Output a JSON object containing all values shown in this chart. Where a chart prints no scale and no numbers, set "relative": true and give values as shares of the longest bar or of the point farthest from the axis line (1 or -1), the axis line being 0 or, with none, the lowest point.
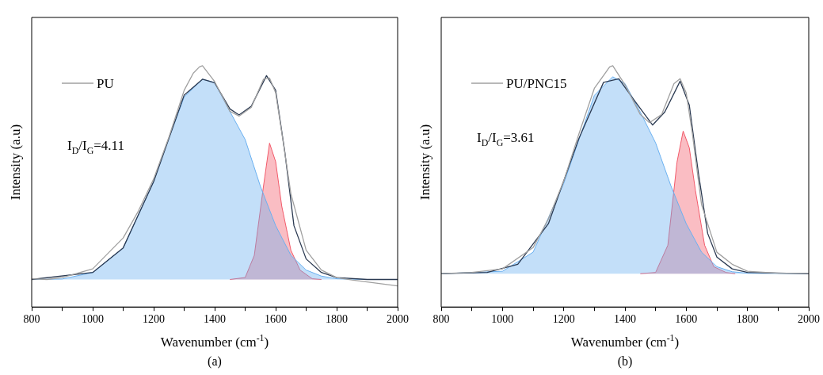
{
  "chart_data": [
    {
      "type": "line",
      "relative": true,
      "xlabel": "Wavenumber (cm$^{-1}$)",
      "ylabel": "Intensity (a.u)",
      "legend": "top left",
      "marker": "none",
      "xlim": [
        800,
        2000
      ],
      "xticks": [
        800,
        {
          "value": 900,
          "label": null
        },
        1000,
        {
          "value": 1100,
          "label": null
        },
        1200,
        {
          "value": 1300,
          "label": null
        },
        1400,
        {
          "value": 1500,
          "label": null
        },
        1600,
        {
          "value": 1700,
          "label": null
        },
        1800,
        {
          "value": 1900,
          "label": null
        },
        2000
      ],
      "annotations": [
        "I$_{D}$/I$_{G}$=4.11",
        "(a)"
      ],
      "series": [
        {
          "type": "line",
          "name": "PU",
          "color": "#a0a0a0",
          "x": [
            800,
            850,
            900,
            1000,
            1100,
            1150,
            1200,
            1250,
            1300,
            1330,
            1350,
            1360,
            1400,
            1450,
            1480,
            1520,
            1560,
            1580,
            1600,
            1620,
            1650,
            1700,
            1750,
            1800,
            1850,
            1900,
            2000
          ],
          "values": [
            0.117,
            0.114,
            0.122,
            0.158,
            0.286,
            0.398,
            0.531,
            0.704,
            0.898,
            0.969,
            0.995,
            1,
            0.934,
            0.811,
            0.791,
            0.827,
            0.944,
            0.949,
            0.888,
            0.724,
            0.469,
            0.235,
            0.153,
            0.122,
            0.112,
            0.104,
            0.087
          ]
        },
        {
          "type": "line",
          "color": "#2b3a52",
          "x": [
            800,
            1000,
            1100,
            1200,
            1300,
            1360,
            1400,
            1450,
            1480,
            1520,
            1570,
            1600,
            1630,
            1660,
            1700,
            1750,
            1800,
            1900,
            2000
          ],
          "values": [
            0.114,
            0.143,
            0.245,
            0.52,
            0.878,
            0.944,
            0.929,
            0.821,
            0.796,
            0.832,
            0.959,
            0.898,
            0.643,
            0.337,
            0.199,
            0.143,
            0.122,
            0.114,
            0.114
          ]
        },
        {
          "type": "area",
          "color": "#6ab0f0",
          "x": [
            800,
            900,
            1000,
            1100,
            1200,
            1250,
            1300,
            1360,
            1400,
            1450,
            1500,
            1550,
            1600,
            1650,
            1700,
            1750,
            1800,
            1900
          ],
          "values": [
            0.114,
            0.116,
            0.143,
            0.245,
            0.52,
            0.7,
            0.87,
            0.944,
            0.93,
            0.81,
            0.694,
            0.5,
            0.337,
            0.214,
            0.153,
            0.128,
            0.117,
            0.114
          ]
        },
        {
          "type": "area",
          "color": "#f25a6a",
          "x": [
            1450,
            1500,
            1530,
            1560,
            1580,
            1600,
            1620,
            1650,
            1680,
            1720,
            1750
          ],
          "values": [
            0.114,
            0.122,
            0.214,
            0.5,
            0.679,
            0.602,
            0.418,
            0.235,
            0.153,
            0.117,
            0.114
          ]
        }
      ]
    },
    {
      "type": "line",
      "relative": true,
      "xlabel": "Wavenumber (cm$^{-1}$)",
      "ylabel": "Intensity (a.u)",
      "legend": "top left",
      "marker": "none",
      "xlim": [
        800,
        2000
      ],
      "xticks": [
        800,
        {
          "value": 900,
          "label": null
        },
        1000,
        {
          "value": 1100,
          "label": null
        },
        1200,
        {
          "value": 1300,
          "label": null
        },
        1400,
        {
          "value": 1500,
          "label": null
        },
        1600,
        {
          "value": 1700,
          "label": null
        },
        1800,
        {
          "value": 1900,
          "label": null
        },
        2000
      ],
      "annotations": [
        "I$_{D}$/I$_{G}$=3.61",
        "(b)"
      ],
      "series": [
        {
          "type": "line",
          "name": "PU/PNC15",
          "color": "#a0a0a0",
          "x": [
            800,
            900,
            1000,
            1100,
            1150,
            1200,
            1250,
            1300,
            1350,
            1360,
            1400,
            1450,
            1480,
            1520,
            1560,
            1580,
            1600,
            1620,
            1650,
            1700,
            1750,
            1800,
            1900,
            2000
          ],
          "values": [
            0.138,
            0.143,
            0.158,
            0.246,
            0.365,
            0.522,
            0.719,
            0.906,
            0.995,
            1,
            0.921,
            0.798,
            0.764,
            0.798,
            0.926,
            0.946,
            0.887,
            0.719,
            0.424,
            0.227,
            0.177,
            0.148,
            0.14,
            0.14
          ]
        },
        {
          "type": "line",
          "color": "#2b3a52",
          "x": [
            800,
            950,
            1050,
            1150,
            1250,
            1330,
            1380,
            1430,
            1490,
            1530,
            1580,
            1610,
            1640,
            1670,
            1700,
            1750,
            1800,
            2000
          ],
          "values": [
            0.138,
            0.143,
            0.177,
            0.345,
            0.7,
            0.931,
            0.946,
            0.857,
            0.754,
            0.808,
            0.936,
            0.837,
            0.552,
            0.305,
            0.207,
            0.158,
            0.143,
            0.138
          ]
        },
        {
          "type": "area",
          "color": "#6ab0f0",
          "x": [
            800,
            1000,
            1100,
            1200,
            1300,
            1360,
            1400,
            1450,
            1500,
            1550,
            1600,
            1650,
            1700,
            1750,
            1800,
            2000
          ],
          "values": [
            0.138,
            0.148,
            0.227,
            0.512,
            0.877,
            0.954,
            0.926,
            0.808,
            0.68,
            0.502,
            0.345,
            0.227,
            0.167,
            0.146,
            0.14,
            0.138
          ]
        },
        {
          "type": "area",
          "color": "#f25a6a",
          "x": [
            1450,
            1500,
            1540,
            1570,
            1590,
            1610,
            1630,
            1660,
            1690,
            1730,
            1760
          ],
          "values": [
            0.138,
            0.143,
            0.256,
            0.601,
            0.729,
            0.66,
            0.483,
            0.256,
            0.167,
            0.143,
            0.138
          ]
        }
      ]
    }
  ]
}
